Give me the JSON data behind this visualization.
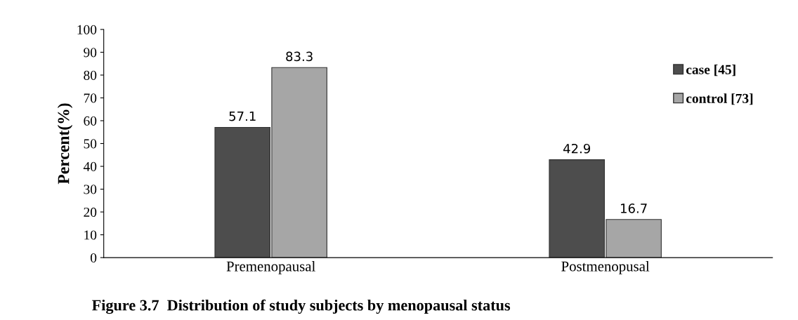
{
  "chart_data": {
    "type": "bar",
    "title": "Figure 3.7  Distribution of study subjects by menopausal status",
    "ylabel": "Percent(%)",
    "categories": [
      "Premenopausal",
      "Postmenopusal"
    ],
    "series": [
      {
        "name": "case [45]",
        "color": "#4d4d4d",
        "values": [
          57.1,
          42.9
        ]
      },
      {
        "name": "control [73]",
        "color": "#a6a6a6",
        "values": [
          83.3,
          16.7
        ]
      }
    ],
    "ylim": [
      0,
      100
    ],
    "yticks": [
      0,
      10,
      20,
      30,
      40,
      50,
      60,
      70,
      80,
      90,
      100
    ],
    "grid": false,
    "legend": "top right",
    "data_labels": true
  }
}
